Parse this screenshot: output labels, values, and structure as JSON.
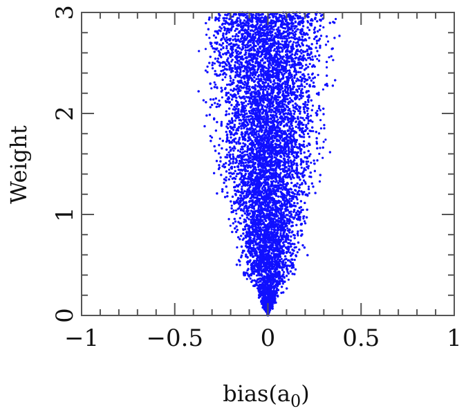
{
  "chart_data": {
    "type": "scatter",
    "title": "",
    "xlabel": "bias(a",
    "xlabel_subscript": "0",
    "xlabel_suffix": ")",
    "ylabel": "Weight",
    "xlim": [
      -1,
      1
    ],
    "ylim": [
      0,
      3
    ],
    "x_ticks": [
      -1,
      -0.5,
      0,
      0.5,
      1
    ],
    "x_tick_labels": [
      "−1",
      "−0.5",
      "0",
      "0.5",
      "1"
    ],
    "y_ticks": [
      0,
      1,
      2,
      3
    ],
    "y_tick_labels": [
      "0",
      "1",
      "2",
      "3"
    ],
    "x_minor_step": 0.1,
    "y_minor_step": 0.2,
    "grid": false,
    "legend": "none",
    "point_color": "#1010ff",
    "series": [
      {
        "points_description_free": true,
        "envelope": {
          "shape": "parabola",
          "vertex": [
            0.0,
            0.0
          ],
          "half_width_at_y": [
            {
              "y": 0.0,
              "half_width": 0.0
            },
            {
              "y": 0.5,
              "half_width": 0.2
            },
            {
              "y": 1.0,
              "half_width": 0.25
            },
            {
              "y": 1.5,
              "half_width": 0.32
            },
            {
              "y": 2.0,
              "half_width": 0.36
            },
            {
              "y": 2.5,
              "half_width": 0.4
            },
            {
              "y": 3.0,
              "half_width": 0.43
            }
          ]
        }
      }
    ]
  }
}
